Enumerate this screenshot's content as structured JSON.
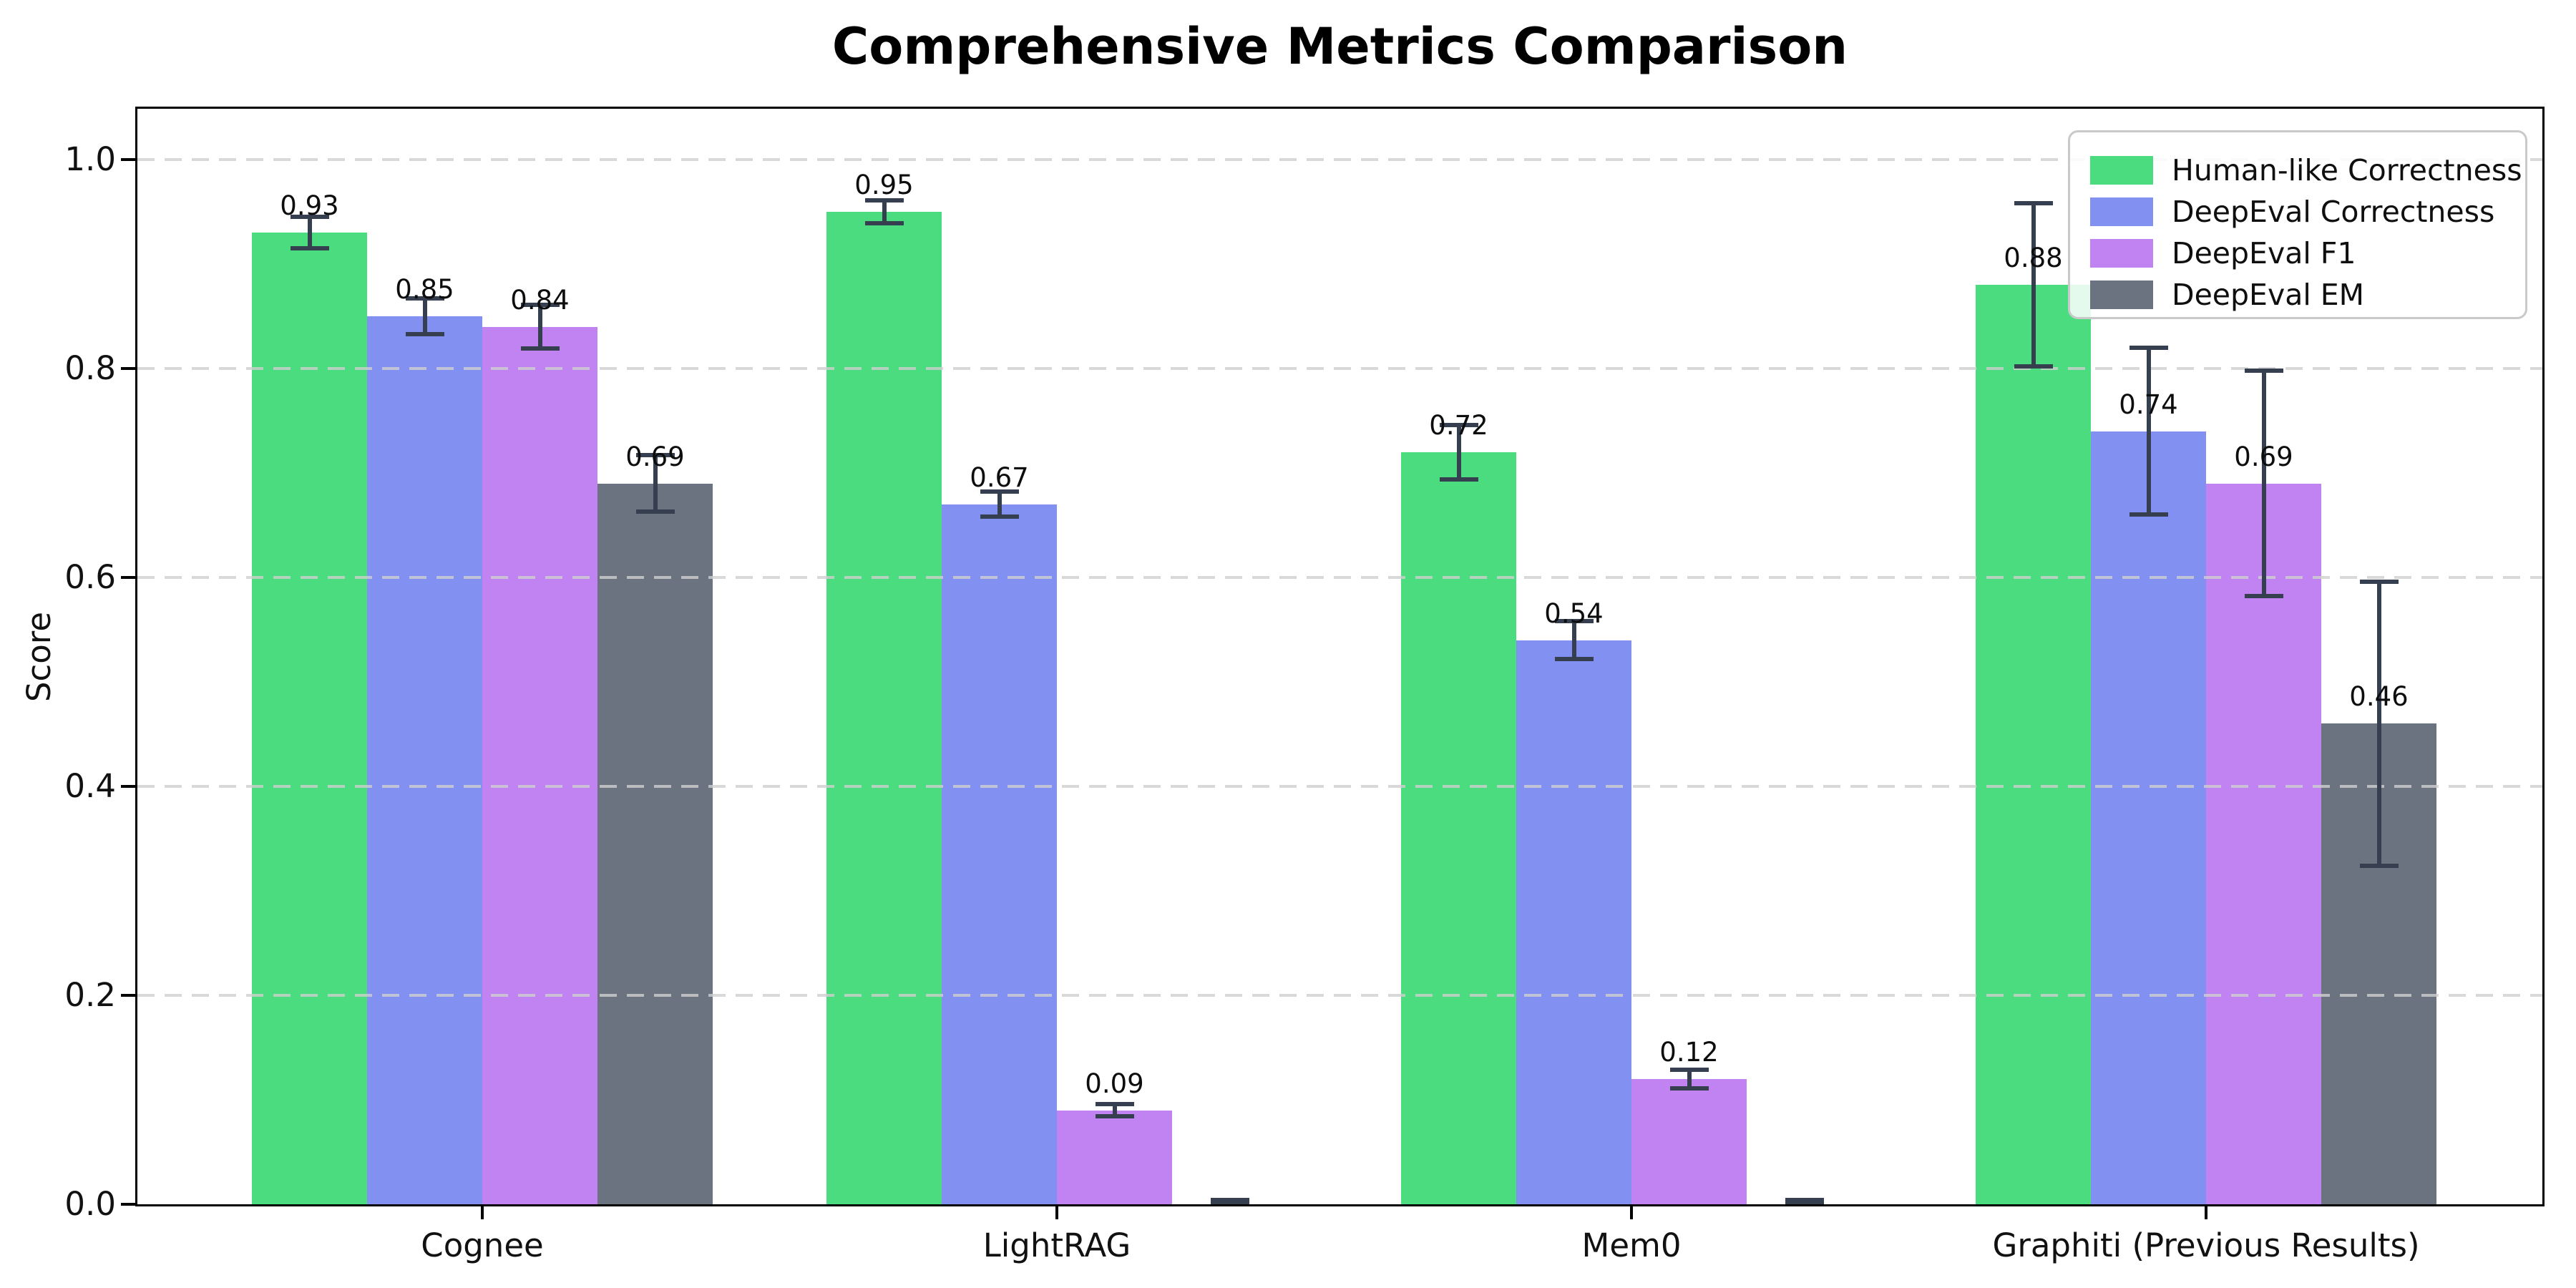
{
  "title": "Comprehensive Metrics Comparison",
  "chart_data": {
    "type": "bar",
    "title": "Comprehensive Metrics Comparison",
    "ylabel": "Score",
    "xlabel": "",
    "categories": [
      "Cognee",
      "LightRAG",
      "Mem0",
      "Graphiti (Previous Results)"
    ],
    "yticks": [
      "0.0",
      "0.2",
      "0.4",
      "0.6",
      "0.8",
      "1.0"
    ],
    "ylim": [
      0,
      1.05
    ],
    "grid": "horizontal-dashed",
    "grid_color": "#cfcfcf",
    "error_bar_color": "#353f50",
    "legend_position": "upper-right",
    "series": [
      {
        "name": "Human-like Correctness",
        "color": "#4bdc80",
        "values": [
          0.93,
          0.95,
          0.72,
          0.88
        ],
        "errors": [
          0.015,
          0.011,
          0.026,
          0.078
        ],
        "value_labels": [
          "0.93",
          "0.95",
          "0.72",
          "0.88"
        ]
      },
      {
        "name": "DeepEval Correctness",
        "color": "#8290f2",
        "values": [
          0.85,
          0.67,
          0.54,
          0.74
        ],
        "errors": [
          0.017,
          0.012,
          0.018,
          0.08
        ],
        "value_labels": [
          "0.85",
          "0.67",
          "0.54",
          "0.74"
        ]
      },
      {
        "name": "DeepEval F1",
        "color": "#c183f2",
        "values": [
          0.84,
          0.09,
          0.12,
          0.69
        ],
        "errors": [
          0.021,
          0.006,
          0.009,
          0.108
        ],
        "value_labels": [
          "0.84",
          "0.09",
          "0.12",
          "0.69"
        ]
      },
      {
        "name": "DeepEval EM",
        "color": "#6c7380",
        "values": [
          0.69,
          0.0,
          0.0,
          0.46
        ],
        "errors": [
          0.027,
          0.004,
          0.004,
          0.136
        ],
        "value_labels": [
          "0.69",
          null,
          null,
          "0.46"
        ]
      }
    ]
  }
}
